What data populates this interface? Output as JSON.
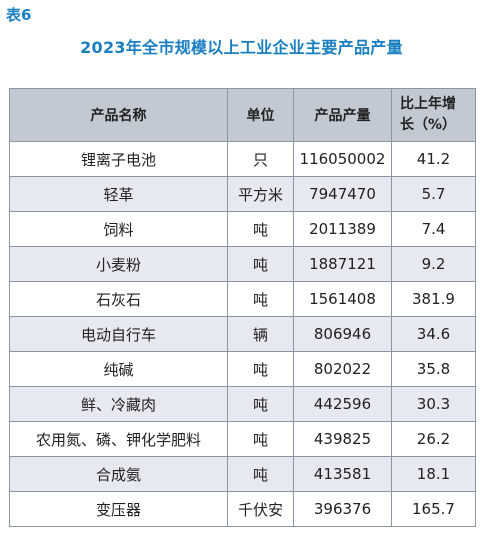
{
  "label": "表6",
  "title": "2023年全市规模以上工业企业主要产品产量",
  "headers": {
    "name": "产品名称",
    "unit": "单位",
    "output": "产品产量",
    "growth_line1": "比上年增",
    "growth_line2": "长（%）"
  },
  "rows": [
    {
      "name": "锂离子电池",
      "unit": "只",
      "output": "116050002",
      "growth": "41.2"
    },
    {
      "name": "轻革",
      "unit": "平方米",
      "output": "7947470",
      "growth": "5.7"
    },
    {
      "name": "饲料",
      "unit": "吨",
      "output": "2011389",
      "growth": "7.4"
    },
    {
      "name": "小麦粉",
      "unit": "吨",
      "output": "1887121",
      "growth": "9.2"
    },
    {
      "name": "石灰石",
      "unit": "吨",
      "output": "1561408",
      "growth": "381.9"
    },
    {
      "name": "电动自行车",
      "unit": "辆",
      "output": "806946",
      "growth": "34.6"
    },
    {
      "name": "纯碱",
      "unit": "吨",
      "output": "802022",
      "growth": "35.8"
    },
    {
      "name": "鲜、冷藏肉",
      "unit": "吨",
      "output": "442596",
      "growth": "30.3"
    },
    {
      "name": "农用氮、磷、钾化学肥料",
      "unit": "吨",
      "output": "439825",
      "growth": "26.2"
    },
    {
      "name": "合成氨",
      "unit": "吨",
      "output": "413581",
      "growth": "18.1"
    },
    {
      "name": "变压器",
      "unit": "千伏安",
      "output": "396376",
      "growth": "165.7"
    }
  ]
}
